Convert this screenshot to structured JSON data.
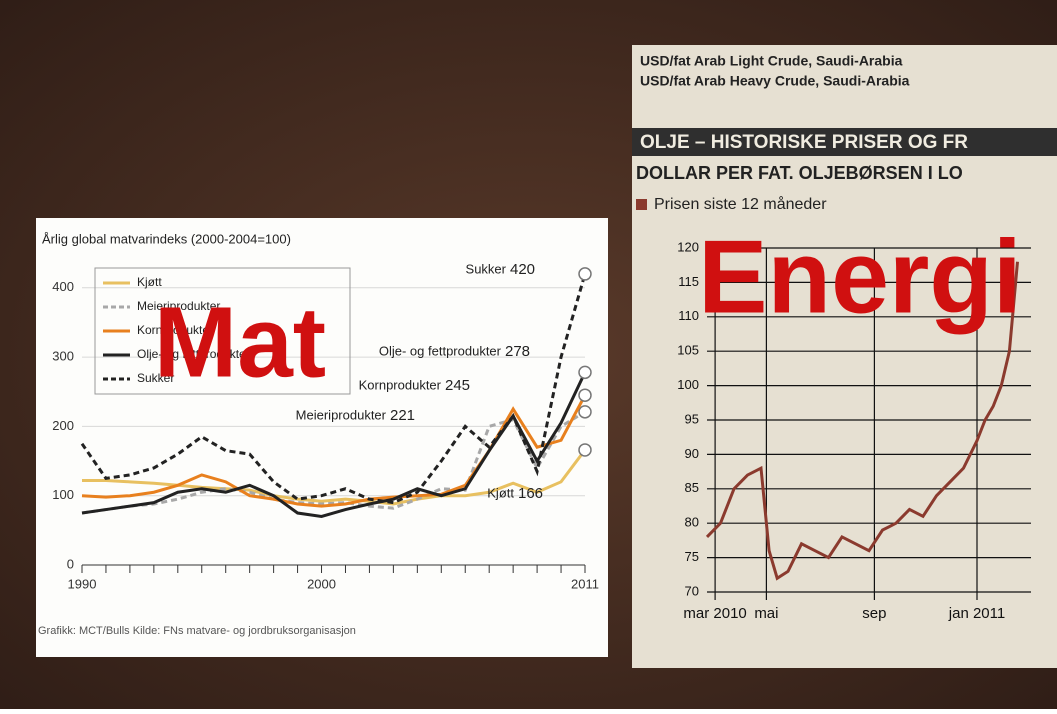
{
  "chart_data": [
    {
      "type": "line",
      "title": "Årlig global matvarindeks (2000-2004=100)",
      "annotation": "Mat",
      "source": "Grafikk: MCT/Bulls Kilde: FNs matvare- og jordbruksorganisasjon",
      "x": [
        1990,
        1991,
        1992,
        1993,
        1994,
        1995,
        1996,
        1997,
        1998,
        1999,
        2000,
        2001,
        2002,
        2003,
        2004,
        2005,
        2006,
        2007,
        2008,
        2009,
        2010,
        2011
      ],
      "xlim": [
        1990,
        2011
      ],
      "xticks": [
        1990,
        2000,
        2011
      ],
      "ylim": [
        0,
        430
      ],
      "yticks": [
        0,
        100,
        200,
        300,
        400
      ],
      "grid": true,
      "series": [
        {
          "name": "Kjøtt",
          "color": "#e8c060",
          "dash": false,
          "values": [
            122,
            122,
            120,
            118,
            115,
            112,
            110,
            108,
            100,
            95,
            92,
            95,
            92,
            88,
            95,
            100,
            100,
            105,
            118,
            105,
            120,
            166
          ]
        },
        {
          "name": "Meieriprodukter",
          "color": "#a8a8a8",
          "dash": true,
          "values": [
            75,
            80,
            85,
            88,
            95,
            105,
            110,
            105,
            95,
            90,
            88,
            90,
            85,
            82,
            95,
            110,
            108,
            200,
            210,
            140,
            200,
            221
          ]
        },
        {
          "name": "Kornprodukter",
          "color": "#e8801e",
          "dash": false,
          "values": [
            100,
            98,
            100,
            105,
            115,
            130,
            120,
            100,
            95,
            88,
            85,
            88,
            95,
            98,
            100,
            102,
            115,
            165,
            225,
            170,
            180,
            245
          ]
        },
        {
          "name": "Olje- og fettprodukter",
          "color": "#222222",
          "dash": false,
          "values": [
            75,
            80,
            85,
            90,
            105,
            110,
            105,
            115,
            100,
            75,
            70,
            80,
            88,
            95,
            110,
            100,
            110,
            165,
            215,
            150,
            205,
            278
          ]
        },
        {
          "name": "Sukker",
          "color": "#222222",
          "dash": true,
          "values": [
            175,
            125,
            130,
            140,
            160,
            185,
            165,
            160,
            120,
            95,
            100,
            110,
            95,
            90,
            105,
            150,
            200,
            170,
            215,
            135,
            300,
            420
          ]
        }
      ]
    },
    {
      "type": "line",
      "header": [
        "USD/fat  Arab Light Crude, Saudi-Arabia",
        "USD/fat  Arab Heavy Crude, Saudi-Arabia"
      ],
      "title": "OLJE – HISTORISKE PRISER OG FR",
      "subtitle": "DOLLAR PER FAT. OLJEBØRSEN I LO",
      "annotation": "Energi",
      "xlim": [
        0,
        12
      ],
      "xticks": [
        {
          "value": 0.3,
          "label": "mar 2010"
        },
        {
          "value": 2.2,
          "label": "mai"
        },
        {
          "value": 6.2,
          "label": "sep"
        },
        {
          "value": 10,
          "label": "jan 2011"
        }
      ],
      "ylim": [
        70,
        120
      ],
      "yticks": [
        70,
        75,
        80,
        85,
        90,
        95,
        100,
        105,
        110,
        115,
        120
      ],
      "grid": true,
      "x": [
        0,
        0.5,
        1,
        1.5,
        2,
        2.3,
        2.6,
        3,
        3.5,
        4,
        4.5,
        5,
        5.5,
        6,
        6.5,
        7,
        7.5,
        8,
        8.5,
        9,
        9.5,
        10,
        10.3,
        10.6,
        10.9,
        11.2,
        11.5
      ],
      "series": [
        {
          "name": "Prisen siste 12 måneder",
          "color": "#8b3a2e",
          "dash": false,
          "values": [
            78,
            80,
            85,
            87,
            88,
            76,
            72,
            73,
            77,
            76,
            75,
            78,
            77,
            76,
            79,
            80,
            82,
            81,
            84,
            86,
            88,
            92,
            95,
            97,
            100,
            105,
            118
          ]
        }
      ]
    }
  ]
}
